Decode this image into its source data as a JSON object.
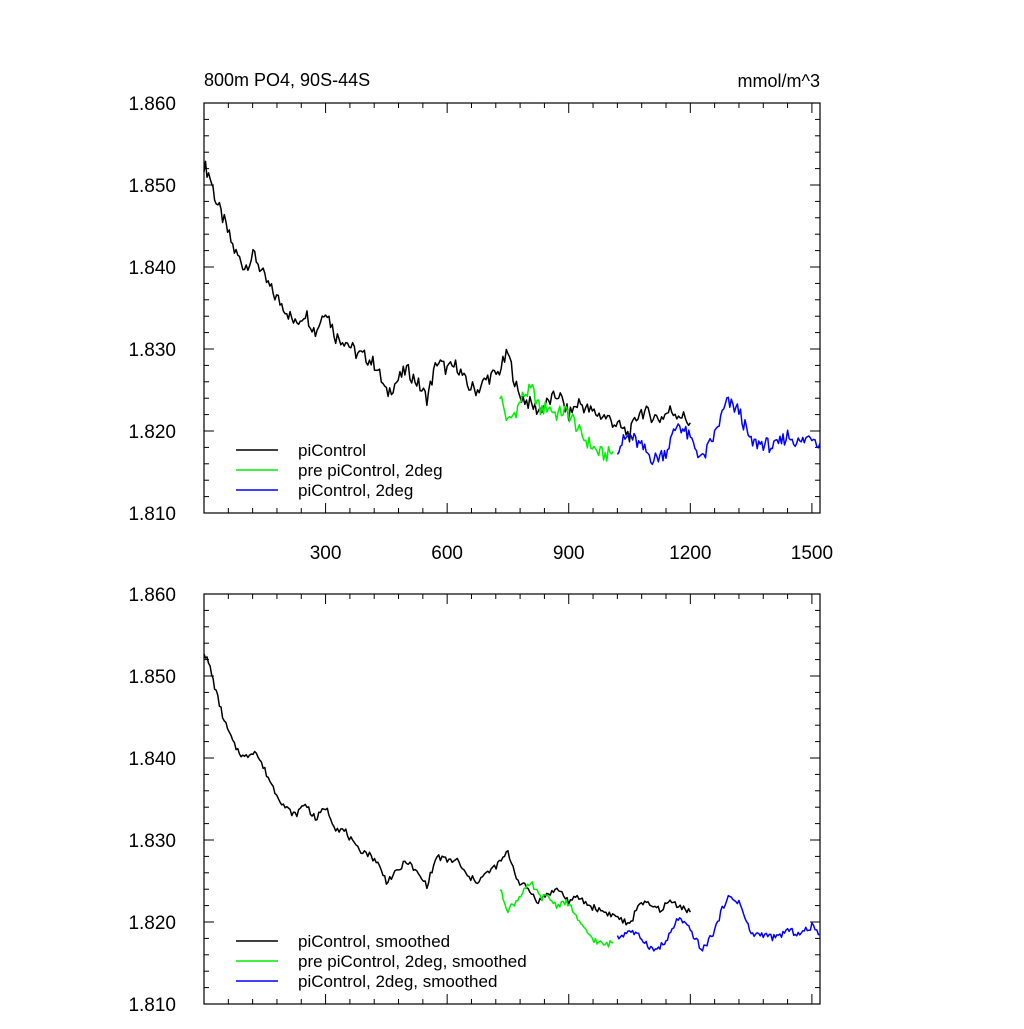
{
  "chart_data": [
    {
      "type": "line",
      "title_left": "800m PO4, 90S-44S",
      "title_right": "mmol/m^3",
      "xlim": [
        0,
        1520
      ],
      "ylim": [
        1.81,
        1.86
      ],
      "x_ticks": [
        300,
        600,
        900,
        1200,
        1500
      ],
      "x_tick_labels": [
        "300",
        "600",
        "900",
        "1200",
        "1500"
      ],
      "y_ticks": [
        1.81,
        1.82,
        1.83,
        1.84,
        1.85,
        1.86
      ],
      "y_tick_labels": [
        "1.810",
        "1.820",
        "1.830",
        "1.840",
        "1.850",
        "1.860"
      ],
      "legend_position": "bottom-left",
      "grid": false,
      "series": [
        {
          "name": "piControl",
          "color": "#000000",
          "x": [
            0,
            15,
            30,
            50,
            75,
            100,
            125,
            150,
            175,
            200,
            225,
            250,
            275,
            300,
            325,
            350,
            375,
            400,
            425,
            450,
            475,
            500,
            525,
            550,
            575,
            600,
            625,
            650,
            675,
            700,
            725,
            750,
            775,
            800,
            825,
            850,
            875,
            900,
            925,
            950,
            975,
            1000,
            1025,
            1050,
            1075,
            1100,
            1125,
            1150,
            1175,
            1200
          ],
          "values": [
            1.8525,
            1.851,
            1.848,
            1.8455,
            1.842,
            1.84,
            1.8415,
            1.8385,
            1.8365,
            1.835,
            1.833,
            1.8345,
            1.832,
            1.835,
            1.8315,
            1.831,
            1.8295,
            1.829,
            1.828,
            1.8245,
            1.826,
            1.8275,
            1.826,
            1.824,
            1.8285,
            1.8275,
            1.828,
            1.8255,
            1.825,
            1.8265,
            1.827,
            1.8295,
            1.8245,
            1.8235,
            1.8225,
            1.8235,
            1.8245,
            1.822,
            1.8235,
            1.8225,
            1.822,
            1.8215,
            1.8205,
            1.8195,
            1.8225,
            1.822,
            1.8215,
            1.8225,
            1.822,
            1.821
          ]
        },
        {
          "name": "pre piControl, 2deg",
          "color": "#00ee00",
          "x": [
            730,
            750,
            770,
            790,
            810,
            830,
            850,
            870,
            890,
            910,
            930,
            950,
            970,
            990,
            1010
          ],
          "values": [
            1.8245,
            1.821,
            1.8225,
            1.8245,
            1.825,
            1.8225,
            1.823,
            1.822,
            1.8225,
            1.8215,
            1.8195,
            1.8185,
            1.8175,
            1.817,
            1.8175
          ]
        },
        {
          "name": "piControl, 2deg",
          "color": "#0000ff",
          "x": [
            1020,
            1050,
            1080,
            1110,
            1140,
            1170,
            1200,
            1230,
            1260,
            1290,
            1320,
            1350,
            1380,
            1410,
            1440,
            1470,
            1500,
            1520
          ],
          "values": [
            1.818,
            1.8195,
            1.818,
            1.8165,
            1.8175,
            1.821,
            1.819,
            1.8165,
            1.8195,
            1.8235,
            1.8225,
            1.8185,
            1.8185,
            1.818,
            1.8195,
            1.8185,
            1.8195,
            1.8185
          ]
        }
      ]
    },
    {
      "type": "line",
      "xlim": [
        0,
        1520
      ],
      "ylim": [
        1.81,
        1.86
      ],
      "x_ticks": [
        300,
        600,
        900,
        1200,
        1500
      ],
      "y_ticks": [
        1.81,
        1.82,
        1.83,
        1.84,
        1.85,
        1.86
      ],
      "y_tick_labels": [
        "1.810",
        "1.820",
        "1.830",
        "1.840",
        "1.850",
        "1.860"
      ],
      "legend_position": "bottom-left",
      "grid": false,
      "series": [
        {
          "name": "piControl, smoothed",
          "color": "#000000",
          "x": [
            0,
            15,
            30,
            50,
            75,
            100,
            125,
            150,
            175,
            200,
            225,
            250,
            275,
            300,
            325,
            350,
            375,
            400,
            425,
            450,
            475,
            500,
            525,
            550,
            575,
            600,
            625,
            650,
            675,
            700,
            725,
            750,
            775,
            800,
            825,
            850,
            875,
            900,
            925,
            950,
            975,
            1000,
            1025,
            1050,
            1075,
            1100,
            1125,
            1150,
            1175,
            1200
          ],
          "values": [
            1.853,
            1.851,
            1.848,
            1.8445,
            1.8415,
            1.84,
            1.841,
            1.8385,
            1.836,
            1.834,
            1.833,
            1.8345,
            1.8325,
            1.834,
            1.8315,
            1.831,
            1.829,
            1.8285,
            1.8275,
            1.825,
            1.826,
            1.8275,
            1.826,
            1.8245,
            1.828,
            1.8275,
            1.8275,
            1.8255,
            1.825,
            1.826,
            1.827,
            1.8285,
            1.825,
            1.824,
            1.8225,
            1.8235,
            1.824,
            1.8225,
            1.823,
            1.822,
            1.8215,
            1.821,
            1.8205,
            1.8195,
            1.8225,
            1.822,
            1.8215,
            1.8225,
            1.822,
            1.8212
          ]
        },
        {
          "name": "pre piControl, 2deg, smoothed",
          "color": "#00ee00",
          "x": [
            730,
            750,
            770,
            790,
            810,
            830,
            850,
            870,
            890,
            910,
            930,
            950,
            970,
            990,
            1010
          ],
          "values": [
            1.824,
            1.8215,
            1.8225,
            1.824,
            1.8245,
            1.823,
            1.823,
            1.822,
            1.8225,
            1.8215,
            1.8195,
            1.8185,
            1.8175,
            1.8172,
            1.8175
          ]
        },
        {
          "name": "piControl, 2deg, smoothed",
          "color": "#0000ff",
          "x": [
            1020,
            1050,
            1080,
            1110,
            1140,
            1170,
            1200,
            1230,
            1260,
            1290,
            1320,
            1350,
            1380,
            1410,
            1440,
            1470,
            1500,
            1520
          ],
          "values": [
            1.818,
            1.819,
            1.818,
            1.8165,
            1.8175,
            1.8205,
            1.819,
            1.8165,
            1.819,
            1.823,
            1.8225,
            1.8185,
            1.8185,
            1.818,
            1.819,
            1.8185,
            1.8195,
            1.8185
          ]
        }
      ]
    }
  ]
}
